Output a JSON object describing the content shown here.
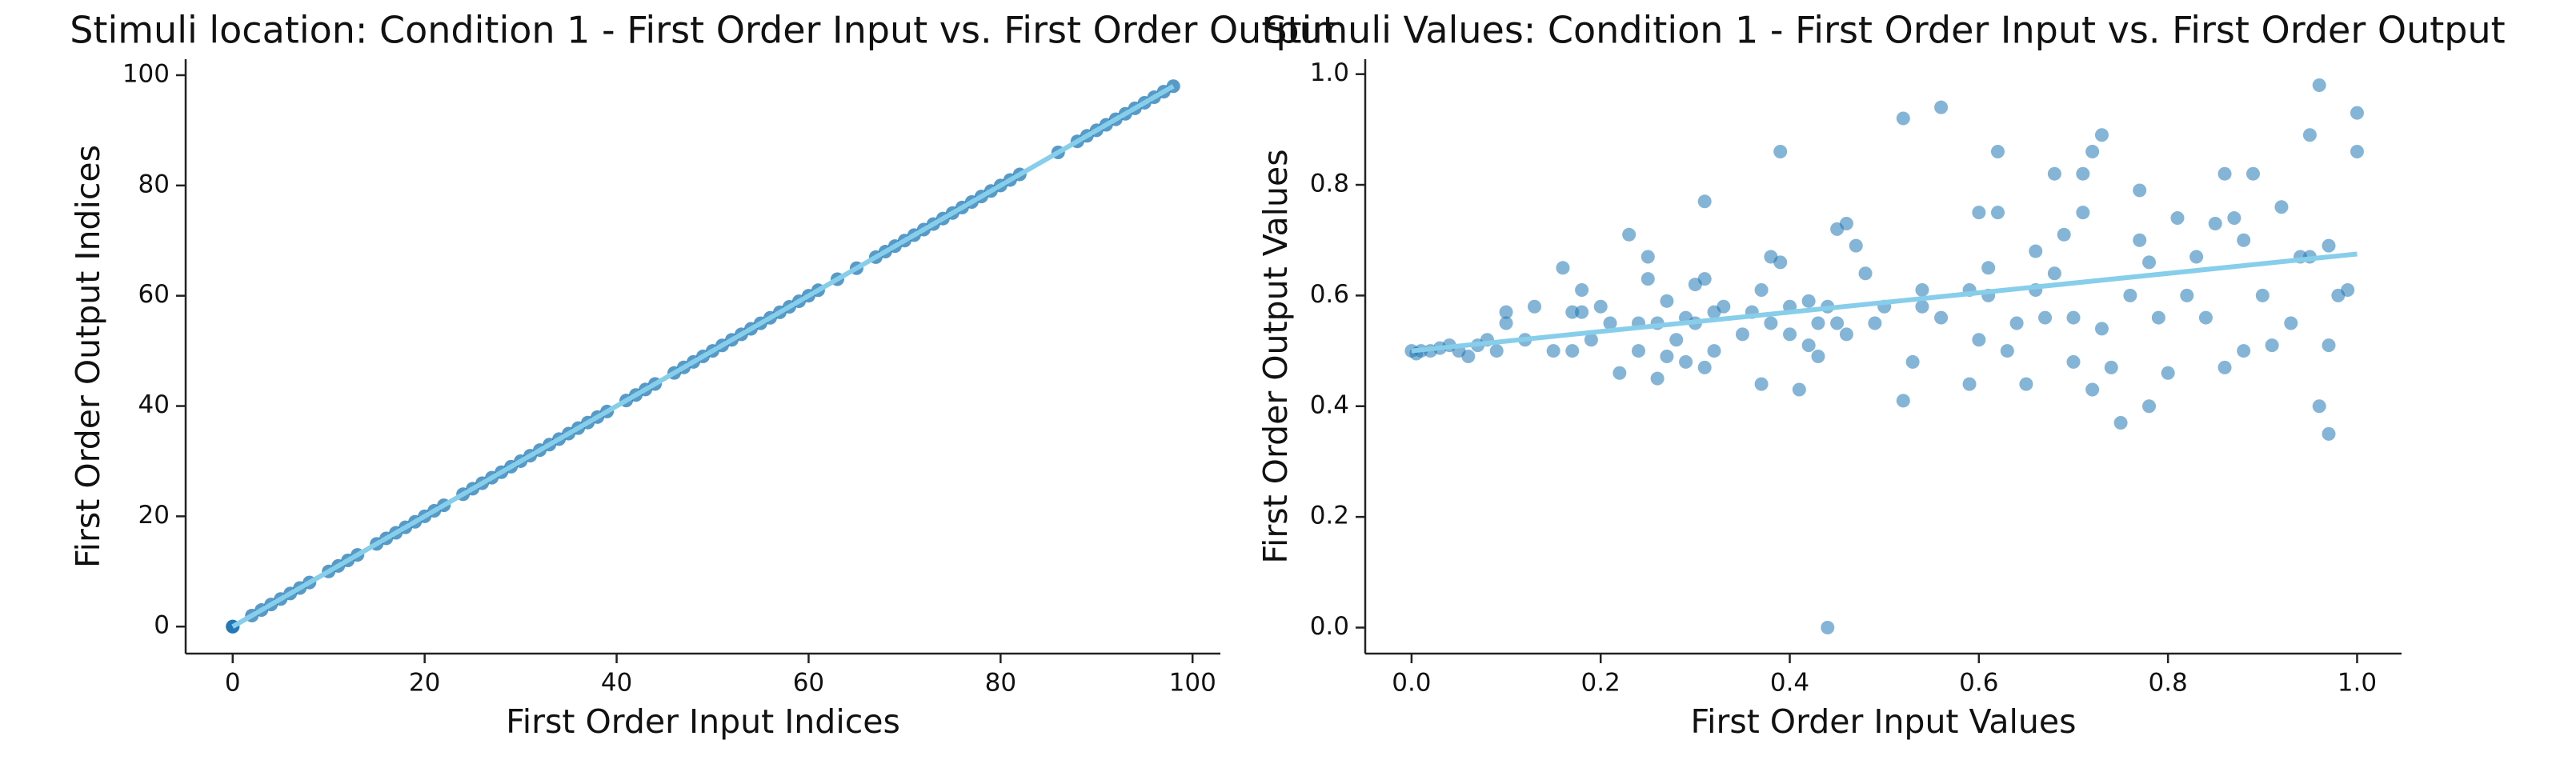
{
  "chart_data": [
    {
      "type": "scatter",
      "title": "Stimuli location: Condition 1 - First Order Input vs. First Order Output",
      "x_label": "First Order Input Indices",
      "y_label": "First Order Output Indices",
      "x": [
        0,
        0,
        0,
        2,
        3,
        4,
        5,
        6,
        7,
        8,
        10,
        11,
        12,
        13,
        15,
        16,
        17,
        18,
        19,
        20,
        21,
        22,
        24,
        25,
        26,
        27,
        28,
        29,
        30,
        31,
        32,
        33,
        34,
        35,
        36,
        37,
        38,
        39,
        41,
        42,
        43,
        44,
        46,
        47,
        48,
        49,
        50,
        51,
        52,
        53,
        54,
        55,
        56,
        57,
        58,
        59,
        60,
        61,
        63,
        65,
        67,
        68,
        69,
        70,
        71,
        72,
        73,
        74,
        75,
        76,
        77,
        78,
        79,
        80,
        81,
        82,
        86,
        88,
        89,
        90,
        91,
        92,
        93,
        94,
        95,
        96,
        97,
        98
      ],
      "values": [
        0,
        0,
        0,
        2,
        3,
        4,
        5,
        6,
        7,
        8,
        10,
        11,
        12,
        13,
        15,
        16,
        17,
        18,
        19,
        20,
        21,
        22,
        24,
        25,
        26,
        27,
        28,
        29,
        30,
        31,
        32,
        33,
        34,
        35,
        36,
        37,
        38,
        39,
        41,
        42,
        43,
        44,
        46,
        47,
        48,
        49,
        50,
        51,
        52,
        53,
        54,
        55,
        56,
        57,
        58,
        59,
        60,
        61,
        63,
        65,
        67,
        68,
        69,
        70,
        71,
        72,
        73,
        74,
        75,
        76,
        77,
        78,
        79,
        80,
        81,
        82,
        86,
        88,
        89,
        90,
        91,
        92,
        93,
        94,
        95,
        96,
        97,
        98
      ],
      "color": "#1f77b4",
      "trend_line": {
        "x": [
          0,
          98
        ],
        "values": [
          0,
          98
        ],
        "color": "#87ceeb"
      },
      "xlim": [
        -4.9,
        102.9
      ],
      "ylim": [
        -4.9,
        102.9
      ],
      "xticks": [
        0,
        20,
        40,
        60,
        80,
        100
      ],
      "yticks": [
        0,
        20,
        40,
        60,
        80,
        100
      ]
    },
    {
      "type": "scatter",
      "title": "Stimuli Values: Condition 1 - First Order Input vs. First Order Output",
      "x_label": "First Order Input Values",
      "y_label": "First Order Output Values",
      "x": [
        0,
        0.005,
        0.01,
        0.02,
        0.03,
        0.04,
        0.05,
        0.06,
        0.07,
        0.08,
        0.09,
        0.1,
        0.1,
        0.12,
        0.13,
        0.15,
        0.16,
        0.17,
        0.17,
        0.18,
        0.18,
        0.19,
        0.2,
        0.21,
        0.22,
        0.23,
        0.24,
        0.24,
        0.25,
        0.25,
        0.26,
        0.26,
        0.27,
        0.27,
        0.28,
        0.29,
        0.29,
        0.3,
        0.3,
        0.31,
        0.31,
        0.31,
        0.32,
        0.32,
        0.33,
        0.35,
        0.36,
        0.37,
        0.37,
        0.38,
        0.38,
        0.39,
        0.39,
        0.4,
        0.4,
        0.41,
        0.42,
        0.42,
        0.43,
        0.43,
        0.44,
        0.44,
        0.45,
        0.45,
        0.46,
        0.46,
        0.47,
        0.48,
        0.49,
        0.5,
        0.52,
        0.52,
        0.53,
        0.54,
        0.54,
        0.56,
        0.56,
        0.59,
        0.59,
        0.6,
        0.6,
        0.61,
        0.61,
        0.62,
        0.62,
        0.63,
        0.64,
        0.65,
        0.66,
        0.66,
        0.67,
        0.68,
        0.68,
        0.69,
        0.7,
        0.7,
        0.71,
        0.71,
        0.72,
        0.72,
        0.73,
        0.73,
        0.74,
        0.75,
        0.76,
        0.77,
        0.77,
        0.78,
        0.78,
        0.79,
        0.8,
        0.81,
        0.82,
        0.83,
        0.84,
        0.85,
        0.86,
        0.86,
        0.87,
        0.88,
        0.88,
        0.89,
        0.9,
        0.91,
        0.92,
        0.93,
        0.94,
        0.95,
        0.95,
        0.96,
        0.96,
        0.97,
        0.97,
        0.97,
        0.98,
        0.99,
        1.0,
        1.0
      ],
      "values": [
        0.5,
        0.495,
        0.5,
        0.5,
        0.505,
        0.51,
        0.5,
        0.49,
        0.51,
        0.52,
        0.5,
        0.55,
        0.57,
        0.52,
        0.58,
        0.5,
        0.65,
        0.57,
        0.5,
        0.57,
        0.61,
        0.52,
        0.58,
        0.55,
        0.46,
        0.71,
        0.5,
        0.55,
        0.63,
        0.67,
        0.45,
        0.55,
        0.49,
        0.59,
        0.52,
        0.56,
        0.48,
        0.55,
        0.62,
        0.63,
        0.47,
        0.77,
        0.57,
        0.5,
        0.58,
        0.53,
        0.57,
        0.44,
        0.61,
        0.67,
        0.55,
        0.86,
        0.66,
        0.58,
        0.53,
        0.43,
        0.51,
        0.59,
        0.55,
        0.49,
        0.0,
        0.58,
        0.72,
        0.55,
        0.73,
        0.53,
        0.69,
        0.64,
        0.55,
        0.58,
        0.92,
        0.41,
        0.48,
        0.61,
        0.58,
        0.94,
        0.56,
        0.44,
        0.61,
        0.75,
        0.52,
        0.6,
        0.65,
        0.75,
        0.86,
        0.5,
        0.55,
        0.44,
        0.68,
        0.61,
        0.56,
        0.82,
        0.64,
        0.71,
        0.56,
        0.48,
        0.82,
        0.75,
        0.43,
        0.86,
        0.89,
        0.54,
        0.47,
        0.37,
        0.6,
        0.7,
        0.79,
        0.66,
        0.4,
        0.56,
        0.46,
        0.74,
        0.6,
        0.67,
        0.56,
        0.73,
        0.82,
        0.47,
        0.74,
        0.5,
        0.7,
        0.82,
        0.6,
        0.51,
        0.76,
        0.55,
        0.67,
        0.67,
        0.89,
        0.98,
        0.4,
        0.69,
        0.51,
        0.35,
        0.6,
        0.61,
        0.93,
        0.86
      ],
      "color": "#1f77b4",
      "trend_line": {
        "x": [
          0,
          1
        ],
        "values": [
          0.5,
          0.675
        ],
        "color": "#87ceeb"
      },
      "xlim": [
        -0.049,
        1.047
      ],
      "ylim": [
        -0.047,
        1.027
      ],
      "xticks": [
        {
          "value": 0,
          "label": "0.0"
        },
        {
          "value": 0.2,
          "label": "0.2"
        },
        {
          "value": 0.4,
          "label": "0.4"
        },
        {
          "value": 0.6,
          "label": "0.6"
        },
        {
          "value": 0.8,
          "label": "0.8"
        },
        {
          "value": 1,
          "label": "1.0"
        }
      ],
      "yticks": [
        {
          "value": 0,
          "label": "0.0"
        },
        {
          "value": 0.2,
          "label": "0.2"
        },
        {
          "value": 0.4,
          "label": "0.4"
        },
        {
          "value": 0.6,
          "label": "0.6"
        },
        {
          "value": 0.8,
          "label": "0.8"
        },
        {
          "value": 1,
          "label": "1.0"
        }
      ]
    }
  ]
}
